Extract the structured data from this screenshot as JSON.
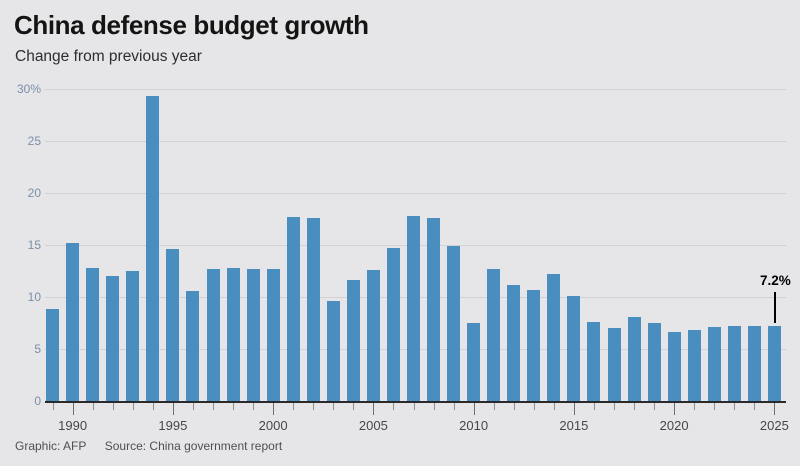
{
  "header": {
    "title": "China defense budget growth",
    "subtitle": "Change from previous year"
  },
  "footer": {
    "graphic_credit": "Graphic: AFP",
    "source": "Source: China government report"
  },
  "colors": {
    "background": "#e6e6e8",
    "bar": "#4a8ec0",
    "gridline": "#d2d2d5",
    "axis_line": "#2a2a2a",
    "ytick_label": "#7b8fa8",
    "xtick_label": "#47474b",
    "title": "#141414",
    "subtitle": "#2d2d2d",
    "footer": "#4f4f52",
    "annotation": "#000000"
  },
  "chart_data": {
    "type": "bar",
    "title": "China defense budget growth",
    "subtitle": "Change from previous year",
    "xlabel": "",
    "ylabel": "",
    "x": [
      1989,
      1990,
      1991,
      1992,
      1993,
      1994,
      1995,
      1996,
      1997,
      1998,
      1999,
      2000,
      2001,
      2002,
      2003,
      2004,
      2005,
      2006,
      2007,
      2008,
      2009,
      2010,
      2011,
      2012,
      2013,
      2014,
      2015,
      2016,
      2017,
      2018,
      2019,
      2020,
      2021,
      2022,
      2023,
      2024,
      2025
    ],
    "values": [
      8.8,
      15.2,
      12.8,
      12.0,
      12.5,
      29.3,
      14.6,
      10.6,
      12.7,
      12.8,
      12.7,
      12.7,
      17.7,
      17.6,
      9.6,
      11.6,
      12.6,
      14.7,
      17.8,
      17.6,
      14.9,
      7.5,
      12.7,
      11.2,
      10.7,
      12.2,
      10.1,
      7.6,
      7.0,
      8.1,
      7.5,
      6.6,
      6.8,
      7.1,
      7.2,
      7.2,
      7.2
    ],
    "unit": "%",
    "ylim": [
      0,
      30
    ],
    "ytick_values": [
      0,
      5,
      10,
      15,
      20,
      25,
      30
    ],
    "ytick_labels": [
      "0",
      "5",
      "10",
      "15",
      "20",
      "25",
      "30%"
    ],
    "xtick_labeled_years": [
      1990,
      1995,
      2000,
      2005,
      2010,
      2015,
      2020,
      2025
    ],
    "grid": true,
    "legend": "none",
    "annotation": {
      "year": 2025,
      "label": "7.2%"
    }
  }
}
